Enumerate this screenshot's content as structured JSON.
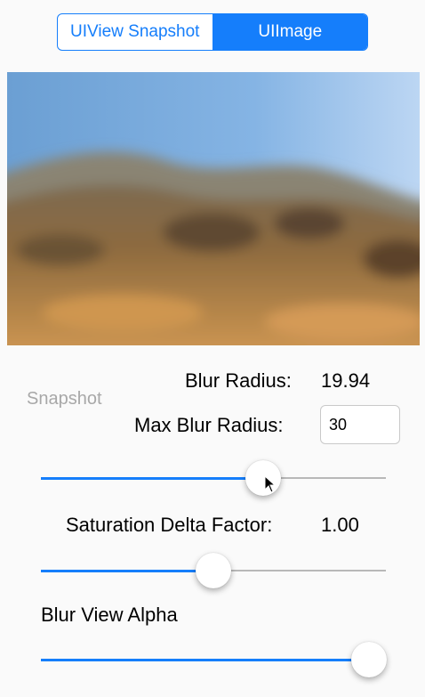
{
  "segmented_control": {
    "items": [
      {
        "label": "UIView Snapshot",
        "selected": false
      },
      {
        "label": "UIImage",
        "selected": true
      }
    ],
    "accent_color": "#157efb"
  },
  "snapshot_button": {
    "label": "Snapshot"
  },
  "blur_radius": {
    "label": "Blur Radius:",
    "value": "19.94"
  },
  "max_blur_radius": {
    "label": "Max Blur Radius:",
    "value": "30"
  },
  "blur_radius_slider": {
    "value": 0.645
  },
  "saturation": {
    "label": "Saturation Delta Factor:",
    "value": "1.00"
  },
  "saturation_slider": {
    "value": 0.5
  },
  "blur_view_alpha": {
    "label": "Blur View Alpha"
  },
  "alpha_slider": {
    "value": 0.95
  }
}
